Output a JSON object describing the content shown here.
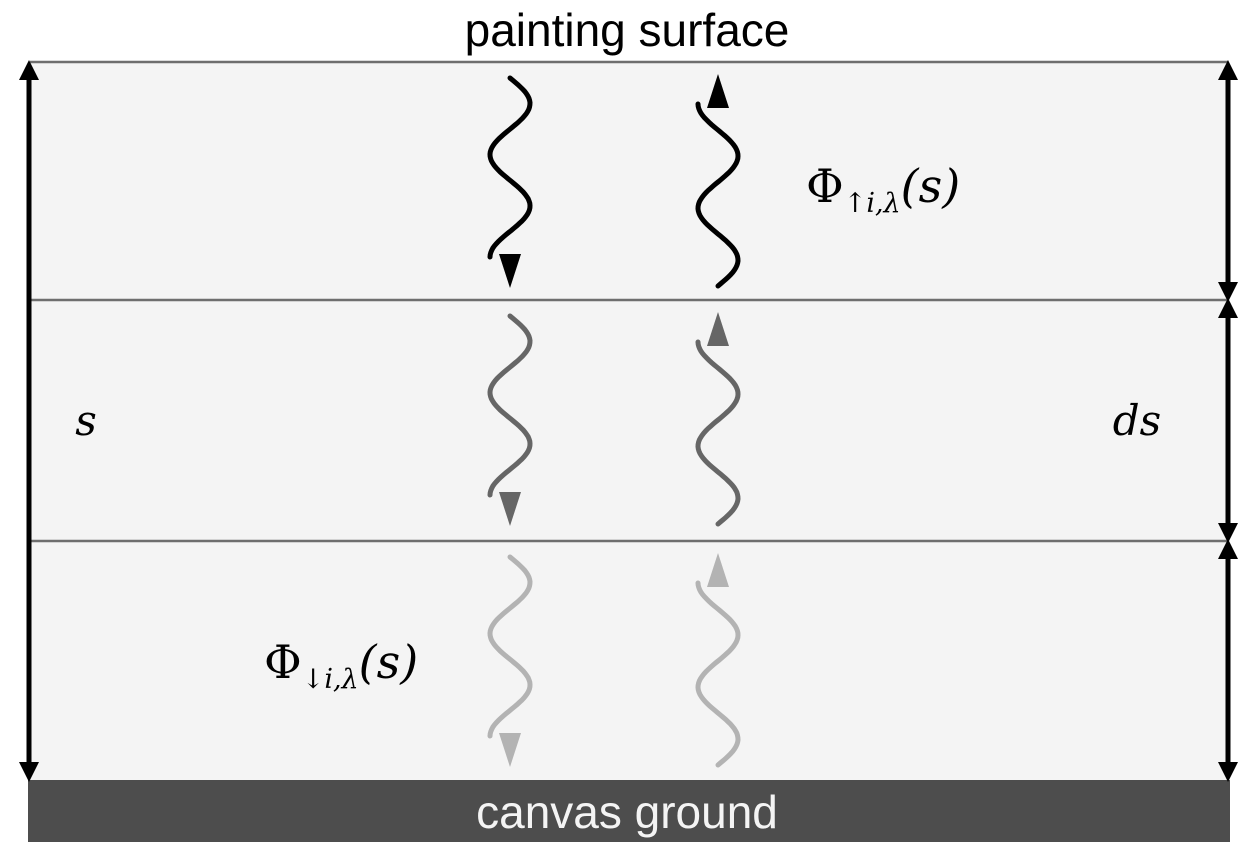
{
  "labels": {
    "surface": "painting surface",
    "ground": "canvas ground",
    "depth": "s",
    "thickness": "ds",
    "flux_up": {
      "symbol": "Φ",
      "sub": "↑i,λ",
      "arg": "(s)"
    },
    "flux_down": {
      "symbol": "Φ",
      "sub": "↓i,λ",
      "arg": "(s)"
    }
  },
  "colors": {
    "layer_fill": "#f4f4f4",
    "layer_line": "#6e6e6e",
    "ground_fill": "#4d4d4d",
    "ground_text": "#f4f4f4",
    "wave_layer_1": "#000000",
    "wave_layer_2": "#666666",
    "wave_layer_3": "#b3b3b3",
    "arrow": "#000000"
  },
  "layers": [
    {
      "name": "top-layer",
      "wave_color": "#000000"
    },
    {
      "name": "middle-layer",
      "wave_color": "#666666"
    },
    {
      "name": "bottom-layer",
      "wave_color": "#b3b3b3"
    }
  ],
  "icons": {
    "wave_down": "wavy-arrow-down-icon",
    "wave_up": "wavy-arrow-up-icon",
    "double_arrow": "double-headed-arrow-icon"
  }
}
